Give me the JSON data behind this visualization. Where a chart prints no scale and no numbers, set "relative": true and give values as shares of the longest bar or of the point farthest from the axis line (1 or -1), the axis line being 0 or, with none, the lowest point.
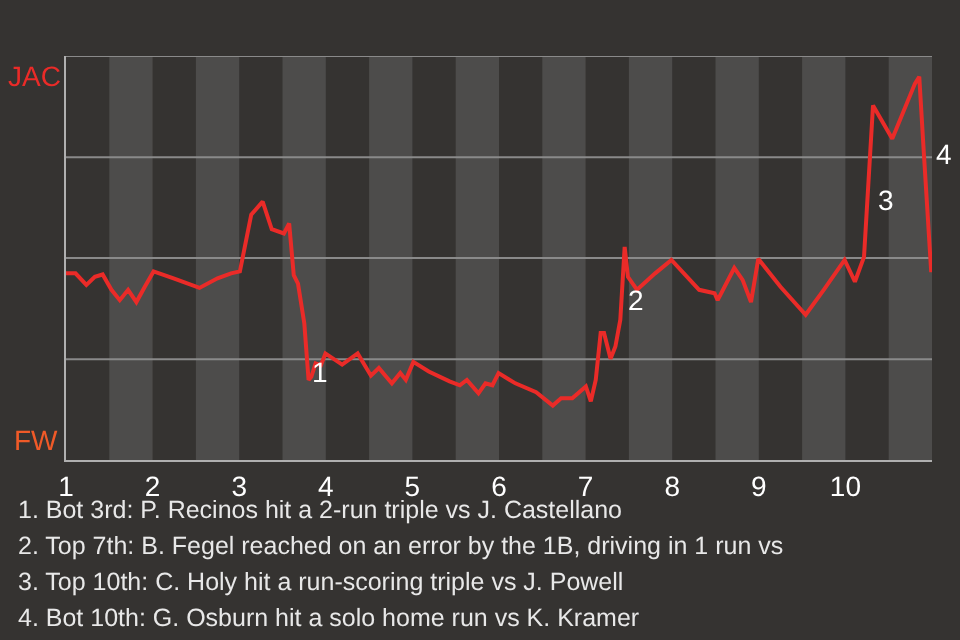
{
  "chart_data": {
    "type": "line",
    "relative": true,
    "x": [
      1,
      1.11,
      1.235,
      1.333,
      1.423,
      1.525,
      1.621,
      1.717,
      1.813,
      1.91,
      2.011,
      2.25,
      2.541,
      2.75,
      2.906,
      3.008,
      3.139,
      3.271,
      3.376,
      3.516,
      3.577,
      3.63,
      3.679,
      3.752,
      3.801,
      3.833,
      3.882,
      3.943,
      3.996,
      4.189,
      4.368,
      4.521,
      4.613,
      4.71,
      4.763,
      4.86,
      4.924,
      5.011,
      5.189,
      5.429,
      5.548,
      5.629,
      5.763,
      5.844,
      5.924,
      5.995,
      6.189,
      6.429,
      6.621,
      6.717,
      6.846,
      7.003,
      7.06,
      7.117,
      7.174,
      7.213,
      7.288,
      7.344,
      7.401,
      7.451,
      7.489,
      7.594,
      7.803,
      7.991,
      8.311,
      8.489,
      8.525,
      8.717,
      8.813,
      8.91,
      8.994,
      9.25,
      9.541,
      9.75,
      9.991,
      10.11,
      10.215,
      10.319,
      10.541,
      10.803,
      10.853,
      10.906,
      10.991
    ],
    "series": [
      {
        "color": "#ea2b28",
        "values": [
          0.487,
          0.487,
          0.457,
          0.478,
          0.484,
          0.444,
          0.417,
          0.444,
          0.412,
          0.452,
          0.492,
          0.473,
          0.449,
          0.474,
          0.487,
          0.492,
          0.64,
          0.674,
          0.602,
          0.591,
          0.617,
          0.482,
          0.46,
          0.356,
          0.209,
          0.217,
          0.252,
          0.247,
          0.278,
          0.249,
          0.278,
          0.22,
          0.24,
          0.214,
          0.2,
          0.227,
          0.209,
          0.256,
          0.231,
          0.205,
          0.195,
          0.209,
          0.174,
          0.2,
          0.195,
          0.227,
          0.2,
          0.177,
          0.142,
          0.161,
          0.161,
          0.192,
          0.153,
          0.209,
          0.331,
          0.331,
          0.264,
          0.296,
          0.366,
          0.556,
          0.478,
          0.444,
          0.487,
          0.522,
          0.444,
          0.435,
          0.417,
          0.501,
          0.47,
          0.412,
          0.525,
          0.452,
          0.379,
          0.444,
          0.522,
          0.465,
          0.53,
          0.925,
          0.838,
          0.982,
          1,
          0.8,
          0.49
        ]
      }
    ],
    "xlim": [
      1,
      11
    ],
    "xticks": [
      1,
      2,
      3,
      4,
      5,
      6,
      7,
      8,
      9,
      10
    ],
    "ref_lines": [
      {
        "axis": "y",
        "value": 0.263,
        "color": "#8a8a8a"
      },
      {
        "axis": "y",
        "value": 0.527,
        "color": "#8a8a8a"
      },
      {
        "axis": "y",
        "value": 0.79,
        "color": "#8a8a8a"
      },
      {
        "axis": "y",
        "value": 1.054,
        "color": "#8a8a8a"
      }
    ],
    "bands": [
      {
        "axis": "x",
        "from": 1.5,
        "to": 2,
        "color": "#4d4c4b"
      },
      {
        "axis": "x",
        "from": 2.5,
        "to": 3,
        "color": "#4d4c4b"
      },
      {
        "axis": "x",
        "from": 3.5,
        "to": 4,
        "color": "#4d4c4b"
      },
      {
        "axis": "x",
        "from": 4.5,
        "to": 5,
        "color": "#4d4c4b"
      },
      {
        "axis": "x",
        "from": 5.5,
        "to": 6,
        "color": "#4d4c4b"
      },
      {
        "axis": "x",
        "from": 6.5,
        "to": 7,
        "color": "#4d4c4b"
      },
      {
        "axis": "x",
        "from": 7.5,
        "to": 8,
        "color": "#4d4c4b"
      },
      {
        "axis": "x",
        "from": 8.5,
        "to": 9,
        "color": "#4d4c4b"
      },
      {
        "axis": "x",
        "from": 9.5,
        "to": 10,
        "color": "#4d4c4b"
      },
      {
        "axis": "x",
        "from": 10.5,
        "to": 11,
        "color": "#4d4c4b"
      }
    ],
    "marker": "none",
    "line_style": "solid",
    "annotations": [
      "JAC",
      "FW",
      {
        "text": "1",
        "x": 3.841,
        "y": 0.245
      },
      {
        "text": "2",
        "x": 7.489,
        "y": 0.433
      },
      {
        "text": "3",
        "x": 10.375,
        "y": 0.694
      },
      {
        "text": "4",
        "x": 11,
        "y": 0.814
      },
      "1. Bot 3rd: P. Recinos hit a 2-run triple vs J. Castellano",
      "2. Top 7th: B. Fegel reached on an error by the 1B, driving in 1 run vs",
      "3. Top 10th: C. Holy hit a run-scoring triple vs J. Powell",
      "4. Bot 10th: G. Osburn hit a solo home run vs K. Kramer"
    ]
  }
}
